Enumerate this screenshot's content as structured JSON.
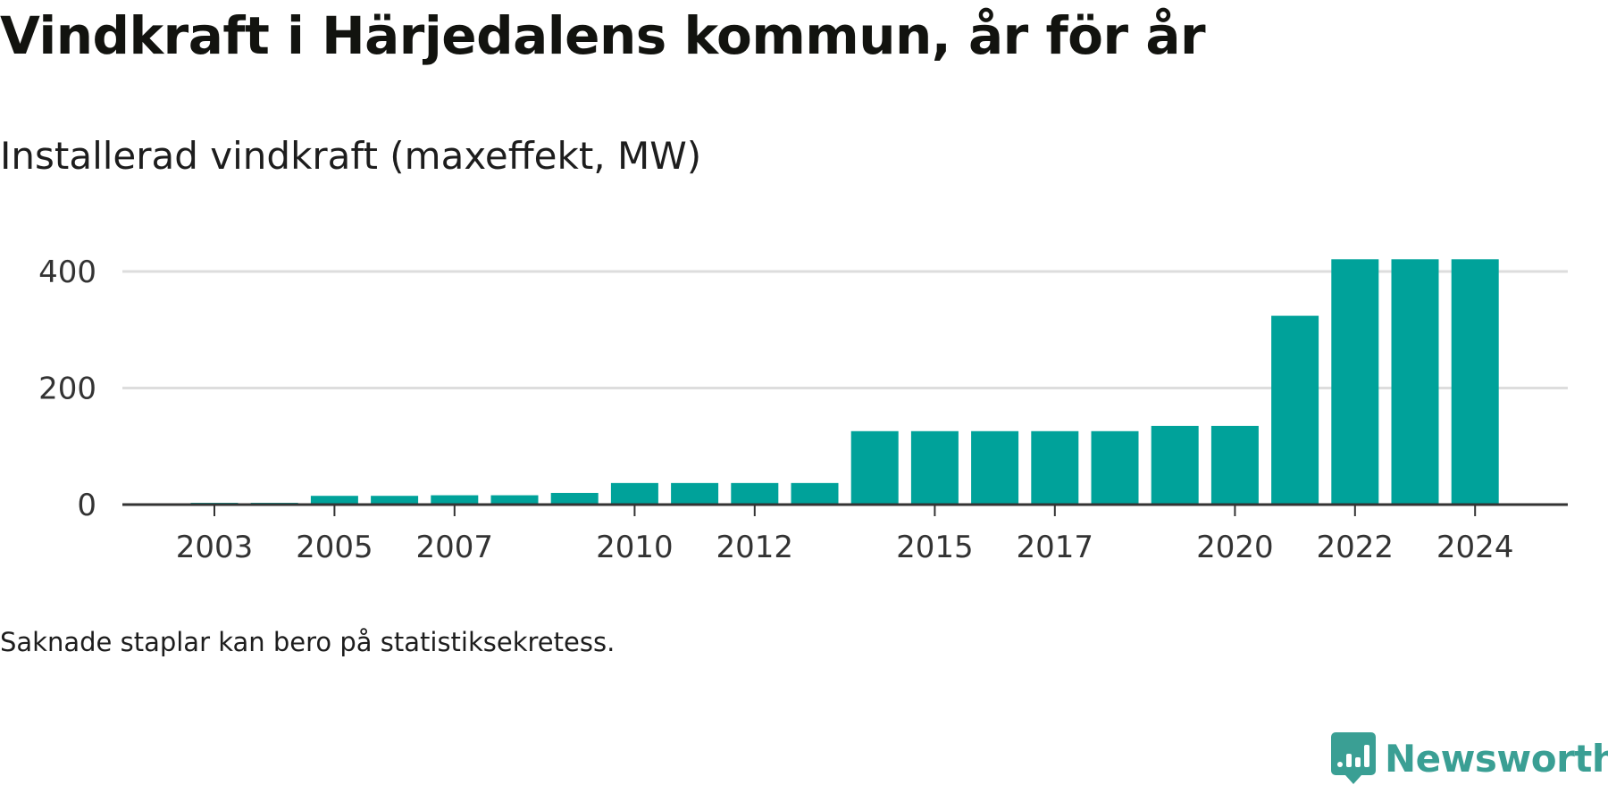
{
  "title": "Vindkraft i Härjedalens kommun, år för år",
  "subtitle": "Installerad vindkraft (maxeffekt, MW)",
  "note": "Saknade staplar kan bero på statistiksekretess.",
  "brand": {
    "name": "Newsworthy",
    "icon": "newsworthy-logo-icon",
    "color": "#3a9f94"
  },
  "colors": {
    "bar": "#00a29a",
    "grid": "#dddddd",
    "axis": "#333333"
  },
  "chart_data": {
    "type": "bar",
    "title": "Vindkraft i Härjedalens kommun, år för år",
    "subtitle": "Installerad vindkraft (maxeffekt, MW)",
    "xlabel": "",
    "ylabel": "",
    "categories": [
      2003,
      2004,
      2005,
      2006,
      2007,
      2008,
      2009,
      2010,
      2011,
      2012,
      2013,
      2014,
      2015,
      2016,
      2017,
      2018,
      2019,
      2020,
      2021,
      2022,
      2023,
      2024
    ],
    "values": [
      3,
      3,
      15,
      15,
      16,
      16,
      20,
      37,
      37,
      37,
      37,
      126,
      126,
      126,
      126,
      126,
      135,
      135,
      324,
      421,
      421,
      421
    ],
    "x_tick_labels": [
      "2003",
      "2005",
      "2007",
      "2010",
      "2012",
      "2015",
      "2017",
      "2020",
      "2022",
      "2024"
    ],
    "y_ticks": [
      0,
      200,
      400
    ],
    "ylim": [
      0,
      420
    ],
    "grid": true,
    "legend": "none"
  }
}
